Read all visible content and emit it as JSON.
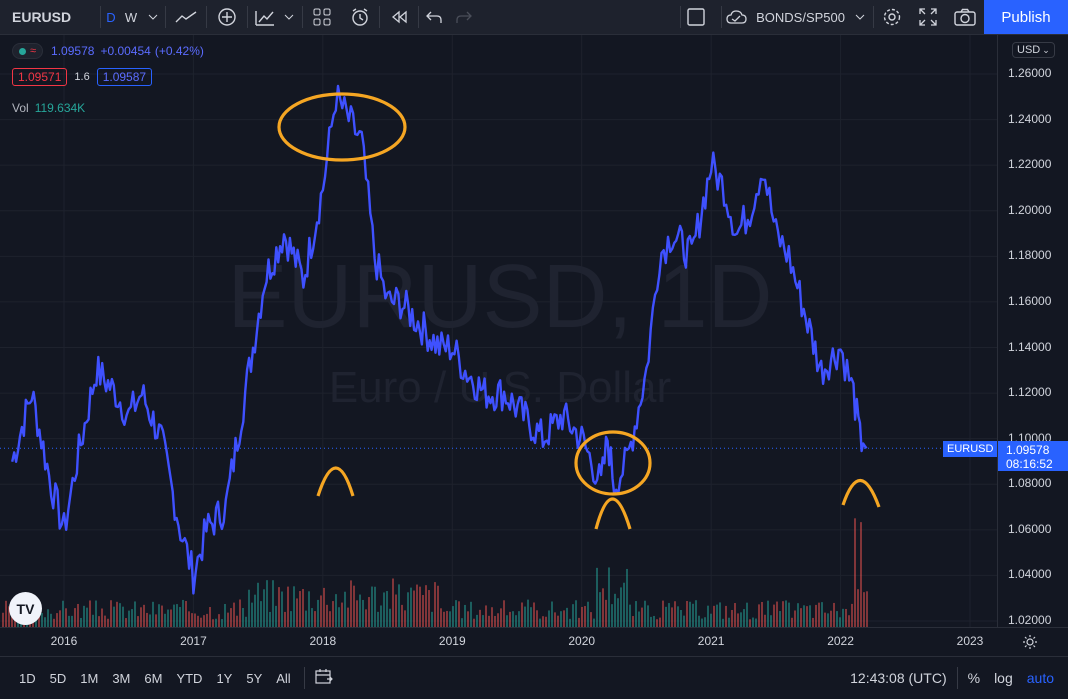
{
  "toolbar": {
    "symbol": "EURUSD",
    "resolutions": [
      "D",
      "W"
    ],
    "compare": "BONDS/SP500",
    "publish": "Publish"
  },
  "legend": {
    "price": "1.09578",
    "change": "+0.00454",
    "change_pct": "(+0.42%)",
    "bid": "1.09571",
    "spread": "1.6",
    "ask": "1.09587",
    "vol_label": "Vol",
    "vol_value": "119.634K"
  },
  "watermark": {
    "symbol": "EURUSD, 1D",
    "description": "Euro / U.S. Dollar"
  },
  "price_axis": {
    "currency": "USD",
    "ticks": [
      "1.26000",
      "1.24000",
      "1.22000",
      "1.20000",
      "1.18000",
      "1.16000",
      "1.14000",
      "1.12000",
      "1.10000",
      "1.08000",
      "1.06000",
      "1.04000",
      "1.02000"
    ],
    "last_label": "EURUSD",
    "last_price": "1.09578",
    "countdown": "08:16:52"
  },
  "time_axis": {
    "ticks": [
      "2016",
      "2017",
      "2018",
      "2019",
      "2020",
      "2021",
      "2022",
      "2023"
    ]
  },
  "bottom": {
    "ranges": [
      "1D",
      "5D",
      "1M",
      "3M",
      "6M",
      "YTD",
      "1Y",
      "5Y",
      "All"
    ],
    "clock": "12:43:08 (UTC)",
    "pct": "%",
    "log": "log",
    "auto": "auto"
  },
  "colors": {
    "line": "#3f51ff",
    "annotation": "#f5a623",
    "accent": "#2962ff",
    "bull": "#26a69a",
    "bear": "#ef5350"
  },
  "chart_data": {
    "type": "line",
    "x": [
      2015.6,
      2015.75,
      2015.9,
      2016.0,
      2016.1,
      2016.25,
      2016.4,
      2016.5,
      2016.6,
      2016.75,
      2016.9,
      2017.0,
      2017.1,
      2017.25,
      2017.4,
      2017.55,
      2017.7,
      2017.85,
      2018.0,
      2018.1,
      2018.2,
      2018.3,
      2018.4,
      2018.5,
      2018.6,
      2018.75,
      2018.9,
      2019.0,
      2019.1,
      2019.25,
      2019.4,
      2019.55,
      2019.7,
      2019.85,
      2020.0,
      2020.15,
      2020.2,
      2020.25,
      2020.35,
      2020.5,
      2020.6,
      2020.7,
      2020.85,
      2021.0,
      2021.1,
      2021.2,
      2021.3,
      2021.4,
      2021.5,
      2021.6,
      2021.7,
      2021.85,
      2022.0,
      2022.1,
      2022.15,
      2022.2
    ],
    "y": [
      1.09,
      1.12,
      1.08,
      1.06,
      1.09,
      1.13,
      1.12,
      1.11,
      1.12,
      1.1,
      1.06,
      1.04,
      1.06,
      1.07,
      1.12,
      1.17,
      1.19,
      1.17,
      1.21,
      1.25,
      1.24,
      1.23,
      1.18,
      1.16,
      1.16,
      1.15,
      1.14,
      1.14,
      1.13,
      1.12,
      1.12,
      1.11,
      1.1,
      1.11,
      1.1,
      1.08,
      1.1,
      1.08,
      1.09,
      1.13,
      1.18,
      1.19,
      1.18,
      1.22,
      1.21,
      1.19,
      1.2,
      1.22,
      1.19,
      1.18,
      1.16,
      1.13,
      1.14,
      1.12,
      1.1,
      1.09578
    ],
    "ylim": [
      1.02,
      1.26
    ],
    "xlim": [
      2015.55,
      2023.2
    ]
  }
}
